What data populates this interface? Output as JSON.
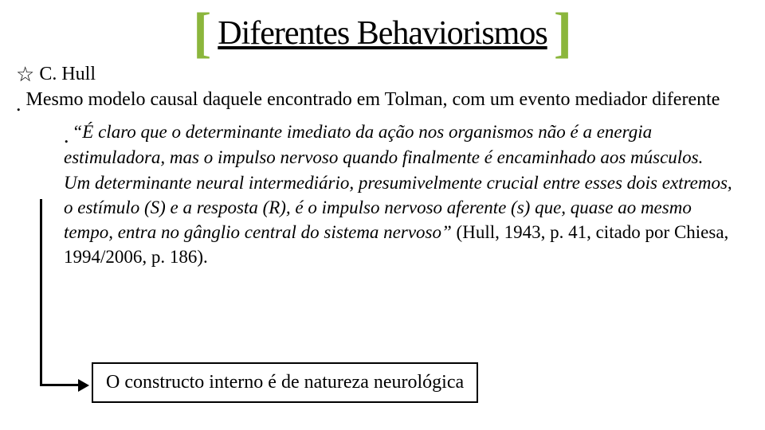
{
  "title": "Diferentes Behaviorismos",
  "author": "C. Hull",
  "bullet1": "Mesmo modelo causal daquele encontrado em Tolman, com um evento mediador diferente",
  "quote": "“É claro que o determinante imediato da ação nos organismos não é a energia estimuladora, mas o impulso nervoso quando finalmente é encaminhado aos músculos. Um determinante neural intermediário, presumivelmente crucial entre esses dois extremos, o estímulo (S) e a resposta (R), é o impulso nervoso aferente (s) que, quase ao mesmo tempo, entra no gânglio central do sistema nervoso”",
  "citation": " (Hull, 1943, p. 41, citado por Chiesa, 1994/2006, p. 186).",
  "box_text": "O constructo interno é de natureza neurológica",
  "colors": {
    "bracket": "#8bb63c",
    "text": "#000000",
    "background": "#ffffff"
  }
}
